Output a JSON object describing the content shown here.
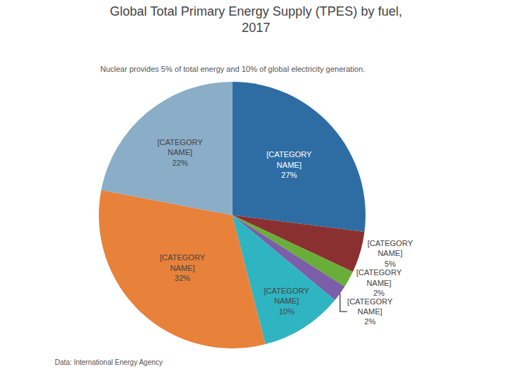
{
  "chart_data": {
    "type": "pie",
    "title": "Global Total Primary Energy Supply (TPES) by fuel,\n2017",
    "subtitle": "Nuclear provides 5% of total energy and 10% of global electricity generation.",
    "categories": [
      "[CATEGORY\nNAME]",
      "[CATEGORY\nNAME]",
      "[CATEGORY\nNAME]",
      "[CATEGORY\nNAME]",
      "[CATEGORY\nNAME]",
      "[CATEGORY\nNAME]",
      "[CATEGORY\nNAME]"
    ],
    "values": [
      27,
      5,
      2,
      2,
      10,
      32,
      22
    ],
    "value_labels": [
      "27%",
      "5%",
      "2%",
      "2%",
      "10%",
      "32%",
      "22%"
    ],
    "colors": [
      "#2E6DA4",
      "#8B3030",
      "#6AAE3A",
      "#7B5EA7",
      "#2EB5C1",
      "#E8813A",
      "#8AADC8"
    ],
    "data_labels": true,
    "annotations": [
      "Data: International Energy Agency"
    ]
  }
}
